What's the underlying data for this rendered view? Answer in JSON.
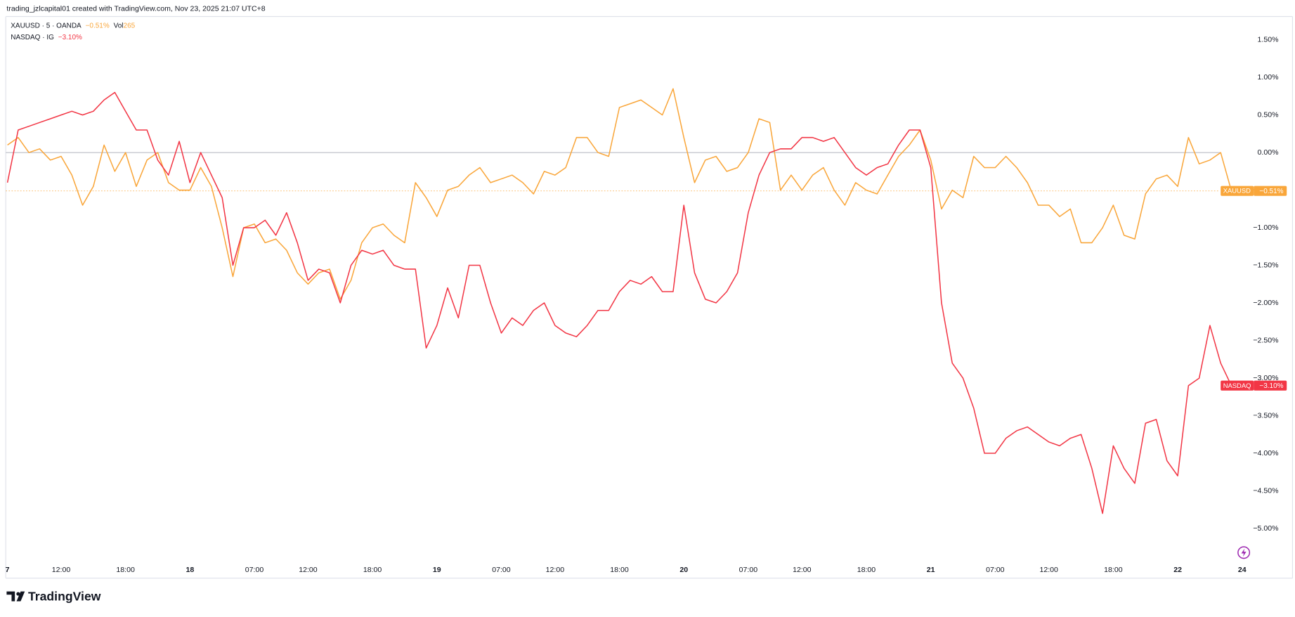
{
  "header": "trading_jzlcapital01 created with TradingView.com, Nov 23, 2025 21:07 UTC+8",
  "footer": "TradingView",
  "chart_data": {
    "type": "line",
    "categories": [
      "7",
      null,
      null,
      null,
      null,
      "12:00",
      null,
      null,
      null,
      null,
      null,
      "18:00",
      null,
      null,
      null,
      null,
      null,
      "18",
      null,
      null,
      null,
      null,
      null,
      "07:00",
      null,
      null,
      null,
      null,
      "12:00",
      null,
      null,
      null,
      null,
      null,
      "18:00",
      null,
      null,
      null,
      null,
      null,
      "19",
      null,
      null,
      null,
      null,
      null,
      "07:00",
      null,
      null,
      null,
      null,
      "12:00",
      null,
      null,
      null,
      null,
      null,
      "18:00",
      null,
      null,
      null,
      null,
      null,
      "20",
      null,
      null,
      null,
      null,
      null,
      "07:00",
      null,
      null,
      null,
      null,
      "12:00",
      null,
      null,
      null,
      null,
      null,
      "18:00",
      null,
      null,
      null,
      null,
      null,
      "21",
      null,
      null,
      null,
      null,
      null,
      "07:00",
      null,
      null,
      null,
      null,
      "12:00",
      null,
      null,
      null,
      null,
      null,
      "18:00",
      null,
      null,
      null,
      null,
      null,
      "22",
      null,
      null,
      null,
      null,
      null,
      "24"
    ],
    "series": [
      {
        "name": "XAUUSD",
        "legend": "XAUUSD · 5 · OANDA",
        "change_label": "−0.51%",
        "volume_label": "Vol",
        "volume": 265,
        "color": "#f9a63a",
        "price_line": true,
        "values": [
          0.1,
          0.2,
          0.0,
          0.05,
          -0.1,
          -0.05,
          -0.3,
          -0.7,
          -0.45,
          0.1,
          -0.25,
          0.0,
          -0.45,
          -0.1,
          0.0,
          -0.4,
          -0.5,
          -0.5,
          -0.2,
          -0.45,
          -1.0,
          -1.65,
          -1.0,
          -0.95,
          -1.2,
          -1.15,
          -1.3,
          -1.6,
          -1.75,
          -1.6,
          -1.55,
          -1.95,
          -1.7,
          -1.2,
          -1.0,
          -0.95,
          -1.1,
          -1.2,
          -0.4,
          -0.6,
          -0.85,
          -0.5,
          -0.45,
          -0.3,
          -0.2,
          -0.4,
          -0.35,
          -0.3,
          -0.4,
          -0.55,
          -0.25,
          -0.3,
          -0.2,
          0.2,
          0.2,
          0.0,
          -0.05,
          0.6,
          0.65,
          0.7,
          0.6,
          0.5,
          0.85,
          0.2,
          -0.4,
          -0.1,
          -0.05,
          -0.25,
          -0.2,
          0.0,
          0.45,
          0.4,
          -0.5,
          -0.3,
          -0.5,
          -0.3,
          -0.2,
          -0.5,
          -0.7,
          -0.4,
          -0.5,
          -0.55,
          -0.3,
          -0.05,
          0.1,
          0.3,
          -0.1,
          -0.75,
          -0.5,
          -0.6,
          -0.05,
          -0.2,
          -0.2,
          -0.05,
          -0.2,
          -0.4,
          -0.7,
          -0.7,
          -0.85,
          -0.75,
          -1.2,
          -1.2,
          -1.0,
          -0.7,
          -1.1,
          -1.15,
          -0.55,
          -0.35,
          -0.3,
          -0.45,
          0.2,
          -0.15,
          -0.1,
          0.0,
          -0.51,
          null
        ]
      },
      {
        "name": "NASDAQ",
        "legend": "NASDAQ · IG",
        "change_label": "−3.10%",
        "color": "#f23645",
        "price_line": false,
        "values": [
          -0.4,
          0.3,
          0.35,
          0.4,
          0.45,
          0.5,
          0.55,
          0.5,
          0.55,
          0.7,
          0.8,
          0.55,
          0.3,
          0.3,
          -0.1,
          -0.3,
          0.15,
          -0.4,
          0.0,
          -0.3,
          -0.6,
          -1.5,
          -1.0,
          -1.0,
          -0.9,
          -1.1,
          -0.8,
          -1.2,
          -1.7,
          -1.55,
          -1.6,
          -2.0,
          -1.5,
          -1.3,
          -1.35,
          -1.3,
          -1.5,
          -1.55,
          -1.55,
          -2.6,
          -2.3,
          -1.8,
          -2.2,
          -1.5,
          -1.5,
          -2.0,
          -2.4,
          -2.2,
          -2.3,
          -2.1,
          -2.0,
          -2.3,
          -2.4,
          -2.45,
          -2.3,
          -2.1,
          -2.1,
          -1.85,
          -1.7,
          -1.75,
          -1.65,
          -1.85,
          -1.85,
          -0.7,
          -1.6,
          -1.95,
          -2.0,
          -1.85,
          -1.6,
          -0.8,
          -0.3,
          0.0,
          0.05,
          0.05,
          0.2,
          0.2,
          0.15,
          0.2,
          0.0,
          -0.2,
          -0.3,
          -0.2,
          -0.15,
          0.1,
          0.3,
          0.3,
          -0.2,
          -2.0,
          -2.8,
          -3.0,
          -3.4,
          -4.0,
          -4.0,
          -3.8,
          -3.7,
          -3.65,
          -3.75,
          -3.85,
          -3.9,
          -3.8,
          -3.75,
          -4.2,
          -4.8,
          -3.9,
          -4.2,
          -4.4,
          -3.6,
          -3.55,
          -4.1,
          -4.3,
          -3.1,
          -3.0,
          -2.3,
          -2.8,
          -3.1,
          null
        ]
      }
    ],
    "ylim": [
      -5.42,
      1.81
    ],
    "yticks": [
      {
        "value": 1.5,
        "label": "1.50%"
      },
      {
        "value": 1.0,
        "label": "1.00%"
      },
      {
        "value": 0.5,
        "label": "0.50%"
      },
      {
        "value": 0,
        "label": "0.00%"
      },
      {
        "value": -0.5,
        "label": "−0.50%"
      },
      {
        "value": -1.0,
        "label": "−1.00%"
      },
      {
        "value": -1.5,
        "label": "−1.50%"
      },
      {
        "value": -2.0,
        "label": "−2.00%"
      },
      {
        "value": -2.5,
        "label": "−2.50%"
      },
      {
        "value": -3.0,
        "label": "−3.00%"
      },
      {
        "value": -3.5,
        "label": "−3.50%"
      },
      {
        "value": -4.0,
        "label": "−4.00%"
      },
      {
        "value": -4.5,
        "label": "−4.50%"
      },
      {
        "value": -5.0,
        "label": "−5.00%"
      }
    ],
    "zero_line": true,
    "grid": false
  }
}
